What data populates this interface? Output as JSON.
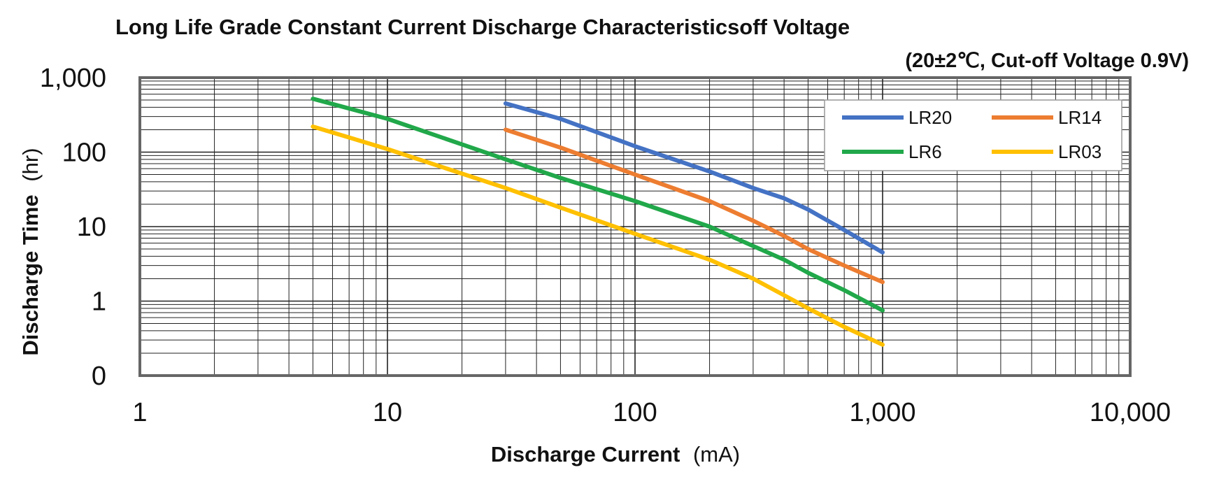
{
  "chart_data": {
    "type": "line",
    "title": "Long Life Grade Constant Current Discharge Characteristicsoff Voltage",
    "subtitle": "(20±2℃, Cut-off Voltage 0.9V)",
    "xlabel_main": "Discharge Current",
    "xlabel_unit": "(mA)",
    "ylabel_main": "Discharge Time",
    "ylabel_unit": "(hr)",
    "x_scale": "log",
    "y_scale": "log",
    "xlim": [
      1,
      10000
    ],
    "ylim": [
      0.1,
      1000
    ],
    "x_ticks": [
      {
        "value": 1,
        "label": "1"
      },
      {
        "value": 10,
        "label": "10"
      },
      {
        "value": 100,
        "label": "100"
      },
      {
        "value": 1000,
        "label": "1,000"
      },
      {
        "value": 10000,
        "label": "10,000"
      }
    ],
    "y_ticks": [
      {
        "value": 1000,
        "label": "1,000"
      },
      {
        "value": 100,
        "label": "100"
      },
      {
        "value": 10,
        "label": "10"
      },
      {
        "value": 1,
        "label": "1"
      },
      {
        "value": 0.1,
        "label": "0"
      }
    ],
    "grid": true,
    "legend_position": "top-right",
    "series": [
      {
        "name": "LR20",
        "color": "#4472C4",
        "points": [
          [
            30,
            450
          ],
          [
            50,
            280
          ],
          [
            100,
            120
          ],
          [
            200,
            55
          ],
          [
            300,
            33
          ],
          [
            400,
            24
          ],
          [
            500,
            17
          ],
          [
            700,
            9
          ],
          [
            1000,
            4.5
          ]
        ]
      },
      {
        "name": "LR14",
        "color": "#ED7D31",
        "points": [
          [
            30,
            200
          ],
          [
            50,
            115
          ],
          [
            100,
            50
          ],
          [
            200,
            22
          ],
          [
            300,
            12
          ],
          [
            400,
            7.5
          ],
          [
            500,
            5
          ],
          [
            700,
            3
          ],
          [
            1000,
            1.8
          ]
        ]
      },
      {
        "name": "LR6",
        "color": "#21A84A",
        "points": [
          [
            5,
            520
          ],
          [
            10,
            280
          ],
          [
            30,
            80
          ],
          [
            50,
            45
          ],
          [
            100,
            22
          ],
          [
            200,
            10
          ],
          [
            300,
            5.5
          ],
          [
            400,
            3.6
          ],
          [
            500,
            2.4
          ],
          [
            700,
            1.4
          ],
          [
            1000,
            0.75
          ]
        ]
      },
      {
        "name": "LR03",
        "color": "#FFC000",
        "points": [
          [
            5,
            220
          ],
          [
            10,
            110
          ],
          [
            30,
            33
          ],
          [
            50,
            18
          ],
          [
            100,
            8
          ],
          [
            200,
            3.6
          ],
          [
            300,
            2
          ],
          [
            400,
            1.2
          ],
          [
            500,
            0.8
          ],
          [
            700,
            0.45
          ],
          [
            1000,
            0.26
          ]
        ]
      }
    ]
  }
}
